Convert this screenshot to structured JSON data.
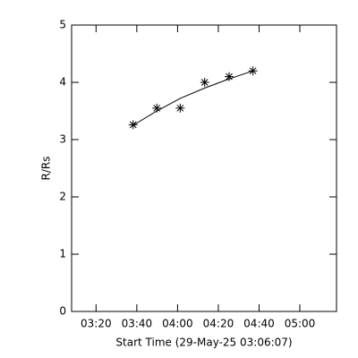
{
  "chart_data": {
    "type": "line",
    "x_label": "Start Time (29-May-25 03:06:07)",
    "y_label": "R/Rs",
    "x": [
      218.2,
      229.8,
      241.3,
      253.3,
      265.3,
      277
    ],
    "series": [
      {
        "color": "#000000",
        "marker": "asterisk",
        "linestyle": "none",
        "values": [
          3.26,
          3.55,
          3.55,
          4.0,
          4.1,
          4.2
        ]
      },
      {
        "color": "#000000",
        "marker": "none",
        "linestyle": "solid",
        "values": [
          3.25,
          3.5,
          3.72,
          3.9,
          4.06,
          4.2
        ]
      }
    ],
    "xlim": [
      188,
      318
    ],
    "xticks": [
      {
        "value": 200,
        "label": "03:20"
      },
      {
        "value": 220,
        "label": "03:40"
      },
      {
        "value": 240,
        "label": "04:00"
      },
      {
        "value": 260,
        "label": "04:20"
      },
      {
        "value": 280,
        "label": "04:40"
      },
      {
        "value": 300,
        "label": "05:00"
      }
    ],
    "ylim": [
      0,
      5
    ],
    "yticks": [
      0,
      1,
      2,
      3,
      4,
      5
    ],
    "grid": false
  }
}
